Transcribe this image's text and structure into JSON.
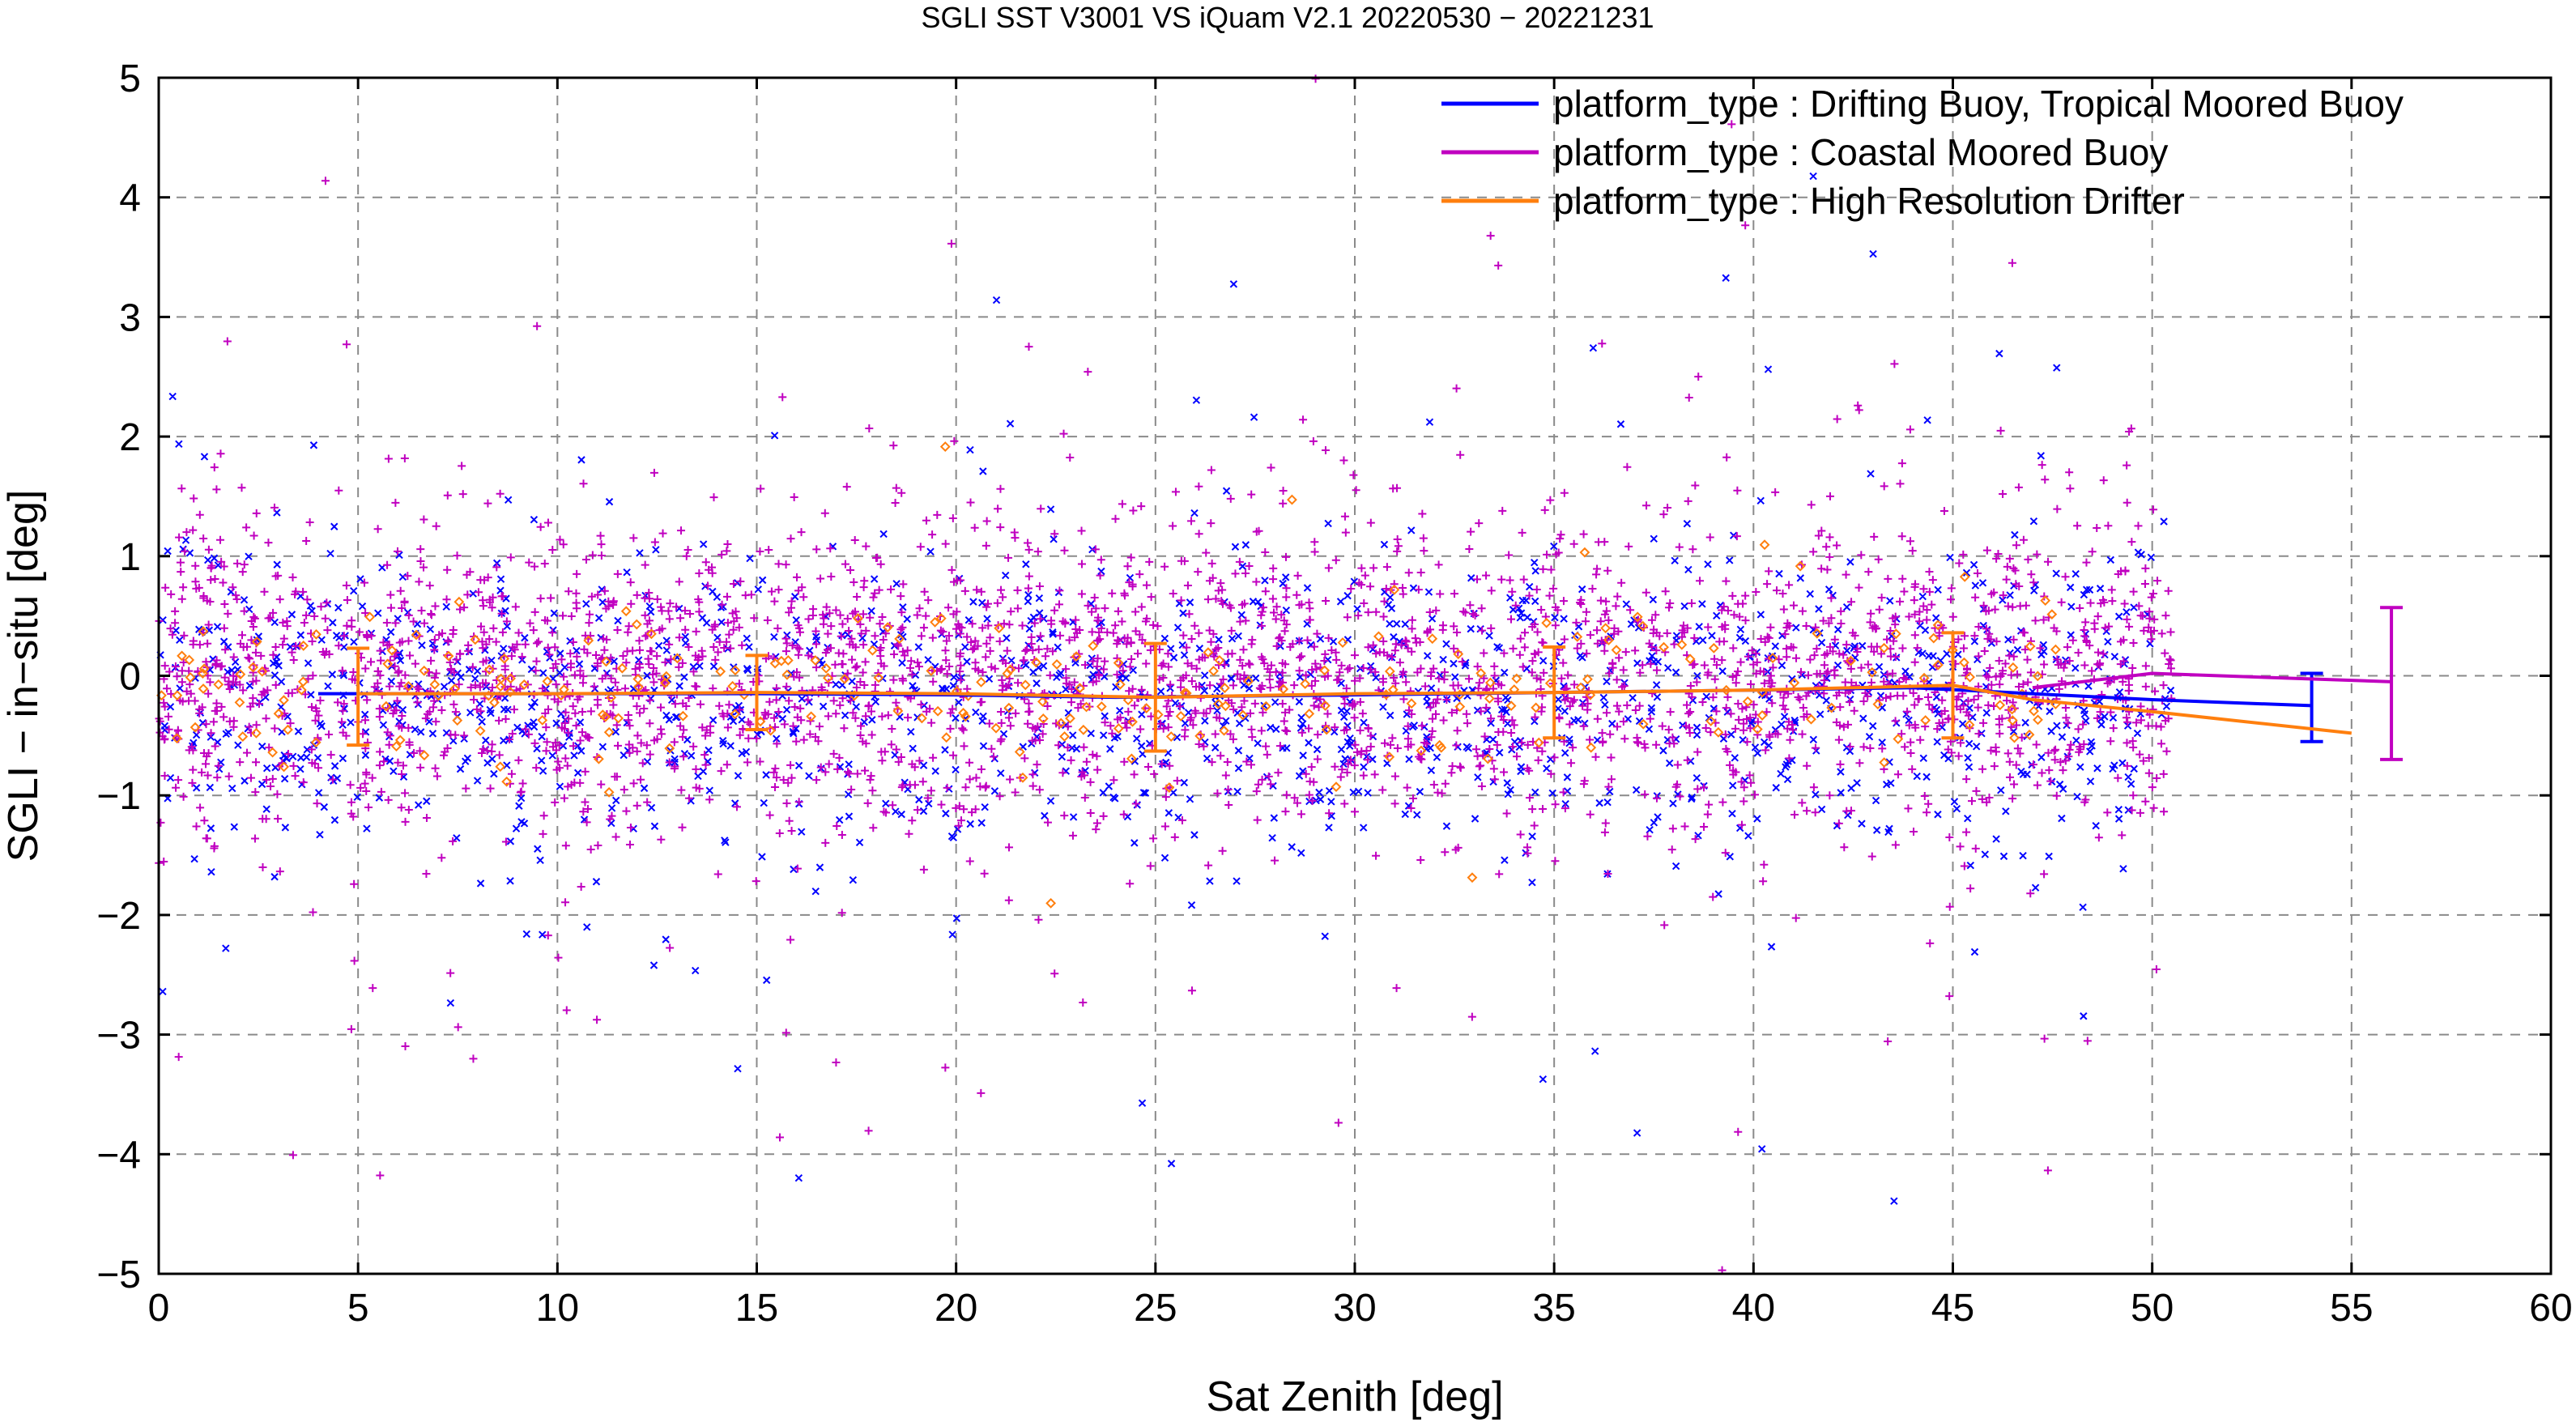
{
  "chart_data": {
    "type": "scatter",
    "title": "SGLI SST V3001 VS iQuam V2.1 20220530 − 20221231",
    "xlabel": "Sat Zenith [deg]",
    "ylabel": "SGLI − in−situ [deg]",
    "xlim": [
      0,
      60
    ],
    "ylim": [
      -5,
      5
    ],
    "xticks": [
      "0",
      "5",
      "10",
      "15",
      "20",
      "25",
      "30",
      "35",
      "40",
      "45",
      "50",
      "55",
      "60"
    ],
    "yticks": [
      "−5",
      "−4",
      "−3",
      "−2",
      "−1",
      "0",
      "1",
      "2",
      "3",
      "4",
      "5"
    ],
    "grid": true,
    "legend_position": "top-right",
    "series": [
      {
        "name": "platform_type : Drifting Buoy, Tropical Moored Buoy",
        "color": "#0000ff",
        "marker": "x",
        "scatter_x_range": [
          0,
          50.5
        ],
        "scatter_y_typical": [
          -1.2,
          0.8
        ],
        "mean_x": [
          4,
          10,
          15,
          20,
          24,
          30,
          35,
          40,
          44,
          47,
          50,
          54
        ],
        "mean_y": [
          -0.15,
          -0.15,
          -0.15,
          -0.16,
          -0.18,
          -0.16,
          -0.14,
          -0.12,
          -0.1,
          -0.15,
          -0.2,
          -0.25
        ],
        "errorbars": [
          {
            "x": 54,
            "y": -0.25,
            "low": -0.55,
            "high": 0.02
          }
        ]
      },
      {
        "name": "platform_type : Coastal Moored Buoy",
        "color": "#c000c0",
        "marker": "+",
        "scatter_x_range": [
          0,
          50.5
        ],
        "scatter_y_typical": [
          -1.0,
          1.0
        ],
        "mean_x": [
          47,
          50,
          56
        ],
        "mean_y": [
          -0.1,
          0.02,
          -0.05
        ],
        "errorbars": [
          {
            "x": 56,
            "y": -0.05,
            "low": -0.7,
            "high": 0.57
          }
        ]
      },
      {
        "name": "platform_type : High Resolution Drifter",
        "color": "#ff7f0e",
        "marker": "diamond",
        "scatter_x_range": [
          0,
          48
        ],
        "scatter_y_typical": [
          -0.6,
          0.4
        ],
        "mean_x": [
          5,
          10,
          15,
          20,
          25,
          30,
          35,
          40,
          45,
          47,
          50,
          55
        ],
        "mean_y": [
          -0.15,
          -0.15,
          -0.14,
          -0.15,
          -0.18,
          -0.15,
          -0.14,
          -0.12,
          -0.08,
          -0.2,
          -0.3,
          -0.48
        ],
        "errorbars": [
          {
            "x": 5,
            "y": -0.15,
            "low": -0.58,
            "high": 0.23
          },
          {
            "x": 15,
            "y": -0.14,
            "low": -0.45,
            "high": 0.17
          },
          {
            "x": 25,
            "y": -0.18,
            "low": -0.63,
            "high": 0.27
          },
          {
            "x": 35,
            "y": -0.14,
            "low": -0.52,
            "high": 0.24
          },
          {
            "x": 45,
            "y": -0.08,
            "low": -0.52,
            "high": 0.36
          }
        ]
      }
    ]
  }
}
